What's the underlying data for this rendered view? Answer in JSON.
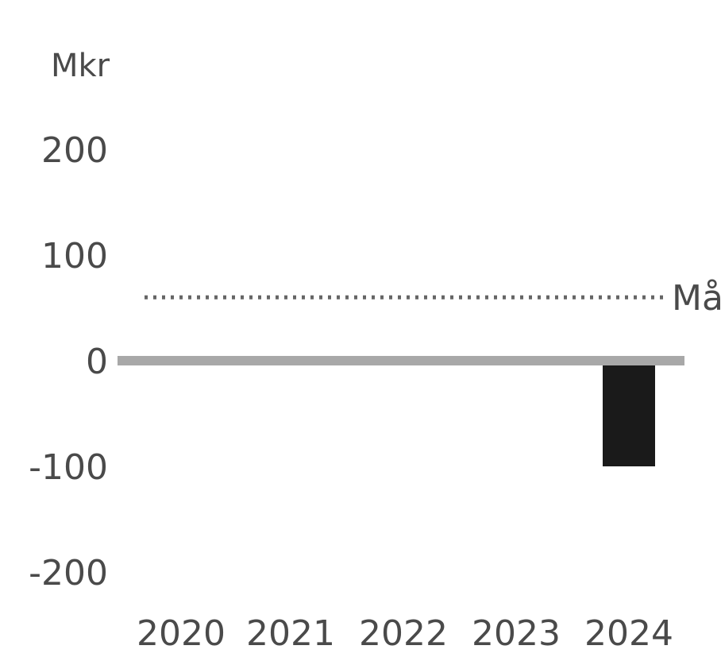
{
  "chart_data": {
    "type": "bar",
    "unit_label": "Mkr",
    "categories": [
      "2020",
      "2021",
      "2022",
      "2023",
      "2024"
    ],
    "values": [
      0,
      0,
      0,
      0,
      -100
    ],
    "ylim": [
      -200,
      200
    ],
    "yticks": [
      "200",
      "100",
      "0",
      "-100",
      "-200"
    ],
    "target": {
      "label": "Mål",
      "value": 60,
      "style": "dotted"
    },
    "grid": false,
    "colors": {
      "bar": "#1a1a1a",
      "zero_line": "#a8a8a8",
      "target_line": "#666666",
      "text": "#4a4a4a"
    }
  }
}
